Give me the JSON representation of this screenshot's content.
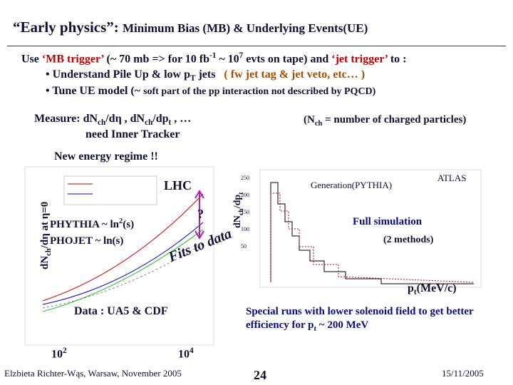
{
  "header": {
    "title_lead": "“Early physics”:",
    "title_rest": "Minimum Bias (MB) & Underlying Events(UE)"
  },
  "intro": [
    "Use ",
    "‘MB trigger’",
    " (~ 70 mb => for 10 fb",
    "-1",
    " ~ 10",
    "7",
    " evts on tape) and ",
    "‘jet trigger’",
    " to :"
  ],
  "bullets": [
    [
      "Understand Pile Up & low p",
      "T",
      " jets",
      "( fw jet tag & jet veto, etc… )"
    ],
    [
      "Tune UE model (~ ",
      "soft part of the pp interaction not described by PQCD)"
    ]
  ],
  "measure": [
    "Measure: dN",
    "ch",
    "/dη , dN",
    "ch",
    "/dp",
    "t",
    " , …",
    "need Inner Tracker"
  ],
  "note": [
    "(N",
    "ch",
    " = number of charged particles)"
  ],
  "regime": "New energy regime !!",
  "left_plot": {
    "y_label": [
      "dN",
      "ch",
      "/dη at η=0"
    ],
    "lhc": "LHC",
    "question": "?",
    "pythia": [
      "PHYTHIA ~ ln",
      "2",
      "(s)"
    ],
    "phojet": "PHOJET ~ ln(s)",
    "fits": "Fits to data",
    "data_note": "Data : UA5 & CDF",
    "x_labels": [
      [
        "10",
        "2"
      ],
      [
        "10",
        "4"
      ]
    ]
  },
  "right_plot": {
    "y_label": [
      "dN",
      "ch",
      "/dp",
      "t"
    ],
    "generation": "Generation(PYTHIA)",
    "atlas": "ATLAS",
    "full_sim": "Full simulation",
    "methods": "(2 methods)",
    "x_label": [
      "p",
      "t",
      "(MeV/c)"
    ],
    "yticks": [
      "250",
      "200",
      "150",
      "100",
      "50"
    ],
    "special": "Special runs with lower solenoid field to get better efficiency for p",
    "special_sub": "t",
    "special_end": " ~ 200 MeV"
  },
  "footer": {
    "author": "Elzbieta Richter-Wąs, Warsaw, November 2005",
    "page": "24",
    "date": "15/11/2005"
  }
}
